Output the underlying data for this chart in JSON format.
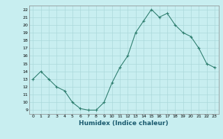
{
  "x": [
    0,
    1,
    2,
    3,
    4,
    5,
    6,
    7,
    8,
    9,
    10,
    11,
    12,
    13,
    14,
    15,
    16,
    17,
    18,
    19,
    20,
    21,
    22,
    23
  ],
  "y": [
    13,
    14,
    13,
    12,
    11.5,
    10,
    9.2,
    9,
    9,
    10,
    12.5,
    14.5,
    16,
    19,
    20.5,
    22,
    21,
    21.5,
    20,
    19,
    18.5,
    17,
    15,
    14.5
  ],
  "line_color": "#2d7d6e",
  "marker": "+",
  "bg_color": "#c8eef0",
  "grid_color": "#aad8da",
  "xlabel": "Humidex (Indice chaleur)",
  "xlim_min": -0.5,
  "xlim_max": 23.5,
  "ylim_min": 8.5,
  "ylim_max": 22.5,
  "yticks": [
    9,
    10,
    11,
    12,
    13,
    14,
    15,
    16,
    17,
    18,
    19,
    20,
    21,
    22
  ],
  "xticks": [
    0,
    1,
    2,
    3,
    4,
    5,
    6,
    7,
    8,
    9,
    10,
    11,
    12,
    13,
    14,
    15,
    16,
    17,
    18,
    19,
    20,
    21,
    22,
    23
  ]
}
